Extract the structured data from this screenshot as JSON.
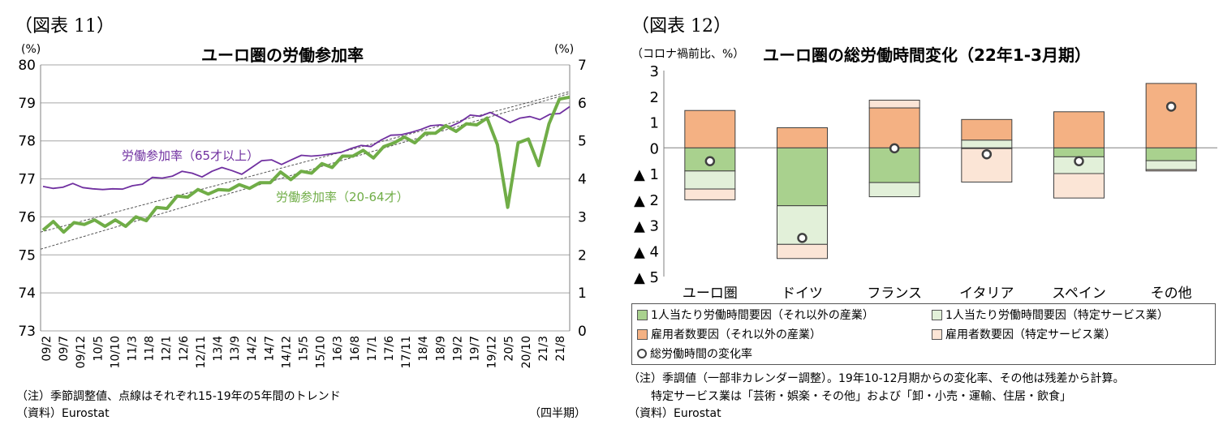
{
  "left": {
    "fig_label": "（図表 11）",
    "title": "ユーロ圏の労働参加率",
    "left_unit": "(%)",
    "right_unit": "(%)",
    "note1": "（注）季節調整値、点線はそれぞれ15-19年の5年間のトレンド",
    "note2": "（資料）Eurostat",
    "period_label": "（四半期）"
  },
  "right": {
    "fig_label": "（図表 12）",
    "unit_label": "（コロナ禍前比、%）",
    "title": "ユーロ圏の総労働時間変化（22年1-3月期）",
    "note1": "（注）季調値（一部非カレンダー調整）。19年10-12月期からの変化率、その他は残差から計算。",
    "note2": "　　特定サービス業は「芸術・娯楽・その他」および「卸・小売・運輸、住居・飲食」",
    "note3": "（資料）Eurostat"
  },
  "chart_data": [
    {
      "type": "line",
      "title": "ユーロ圏の労働参加率",
      "x_tick_labels": [
        "09/2",
        "09/7",
        "09/12",
        "10/5",
        "10/10",
        "11/3",
        "11/8",
        "12/1",
        "12/6",
        "12/11",
        "13/4",
        "13/9",
        "14/2",
        "14/7",
        "14/12",
        "15/5",
        "15/10",
        "16/3",
        "16/8",
        "17/1",
        "17/6",
        "17/11",
        "18/4",
        "18/9",
        "19/2",
        "19/7",
        "19/12",
        "20/5",
        "20/10",
        "21/3",
        "21/8"
      ],
      "y_left": {
        "ticks": [
          73,
          74,
          75,
          76,
          77,
          78,
          79,
          80
        ],
        "ylim": [
          73,
          80
        ]
      },
      "y_right": {
        "ticks": [
          0,
          1,
          2,
          3,
          4,
          5,
          6,
          7
        ],
        "ylim": [
          0,
          7
        ]
      },
      "series": [
        {
          "name": "労働参加率（65才以上）",
          "axis": "right",
          "color": "#7030a0",
          "values": [
            3.8,
            3.75,
            3.78,
            3.88,
            3.77,
            3.74,
            3.72,
            3.74,
            3.73,
            3.82,
            3.86,
            4.04,
            4.02,
            4.07,
            4.2,
            4.15,
            4.05,
            4.2,
            4.3,
            4.22,
            4.12,
            4.3,
            4.48,
            4.5,
            4.38,
            4.5,
            4.62,
            4.6,
            4.62,
            4.66,
            4.7,
            4.8,
            4.88,
            4.85,
            5.02,
            5.15,
            5.16,
            5.22,
            5.3,
            5.4,
            5.42,
            5.38,
            5.5,
            5.68,
            5.65,
            5.75,
            5.62,
            5.48,
            5.6,
            5.64,
            5.56,
            5.7,
            5.72,
            5.9
          ]
        },
        {
          "name": "労働参加率（20-64才）",
          "axis": "left",
          "color": "#70ad47",
          "values": [
            75.65,
            75.88,
            75.6,
            75.85,
            75.8,
            75.92,
            75.75,
            75.92,
            75.75,
            76.0,
            75.9,
            76.25,
            76.22,
            76.55,
            76.52,
            76.72,
            76.6,
            76.72,
            76.7,
            76.85,
            76.75,
            76.9,
            76.9,
            77.18,
            76.98,
            77.2,
            77.15,
            77.4,
            77.3,
            77.6,
            77.6,
            77.75,
            77.55,
            77.85,
            77.95,
            78.1,
            77.95,
            78.2,
            78.2,
            78.4,
            78.25,
            78.45,
            78.42,
            78.6,
            77.9,
            76.25,
            77.95,
            78.05,
            77.35,
            78.45,
            79.1,
            79.15
          ]
        },
        {
          "name": "トレンド（65才以上）",
          "axis": "right",
          "style": "dotted",
          "values_endpoints": [
            2.6,
            6.3
          ]
        },
        {
          "name": "トレンド（20-64才）",
          "axis": "left",
          "style": "dotted",
          "values_endpoints": [
            75.15,
            79.25
          ]
        }
      ],
      "annotations": [
        "労働参加率（65才以上）",
        "労働参加率（20-64才）"
      ],
      "period_label": "（四半期）"
    },
    {
      "type": "bar",
      "stacked": true,
      "title": "ユーロ圏の総労働時間変化（22年1-3月期）",
      "ylabel": "（コロナ禍前比、%）",
      "categories": [
        "ユーロ圏",
        "ドイツ",
        "フランス",
        "イタリア",
        "スペイン",
        "その他"
      ],
      "y_ticks": [
        3,
        2,
        1,
        0,
        -1,
        -2,
        -3,
        -4,
        -5
      ],
      "y_tick_labels": [
        "3",
        "2",
        "1",
        "0",
        "▲ 1",
        "▲ 2",
        "▲ 3",
        "▲ 4",
        "▲ 5"
      ],
      "ylim": [
        -5,
        3
      ],
      "series": [
        {
          "name": "1人当たり労働時間要因（それ以外の産業）",
          "color": "#a9d18e",
          "values": [
            -0.9,
            -2.25,
            -1.35,
            -0.03,
            -0.35,
            -0.5
          ]
        },
        {
          "name": "1人当たり労働時間要因（特定サービス業）",
          "color": "#e2f0d9",
          "values": [
            -0.7,
            -1.5,
            -0.55,
            0.3,
            -0.65,
            -0.35
          ]
        },
        {
          "name": "雇用者数要因（それ以外の産業）",
          "color": "#f4b183",
          "values": [
            1.45,
            0.78,
            1.55,
            0.8,
            1.4,
            2.5
          ]
        },
        {
          "name": "雇用者数要因（特定サービス業）",
          "color": "#fbe5d6",
          "values": [
            -0.42,
            -0.55,
            0.3,
            -1.3,
            -0.95,
            -0.05
          ]
        },
        {
          "name": "総労働時間の変化率",
          "type": "marker",
          "values": [
            -0.52,
            -3.5,
            -0.02,
            -0.25,
            -0.52,
            1.6
          ]
        }
      ],
      "legend_placement": "bottom"
    }
  ]
}
